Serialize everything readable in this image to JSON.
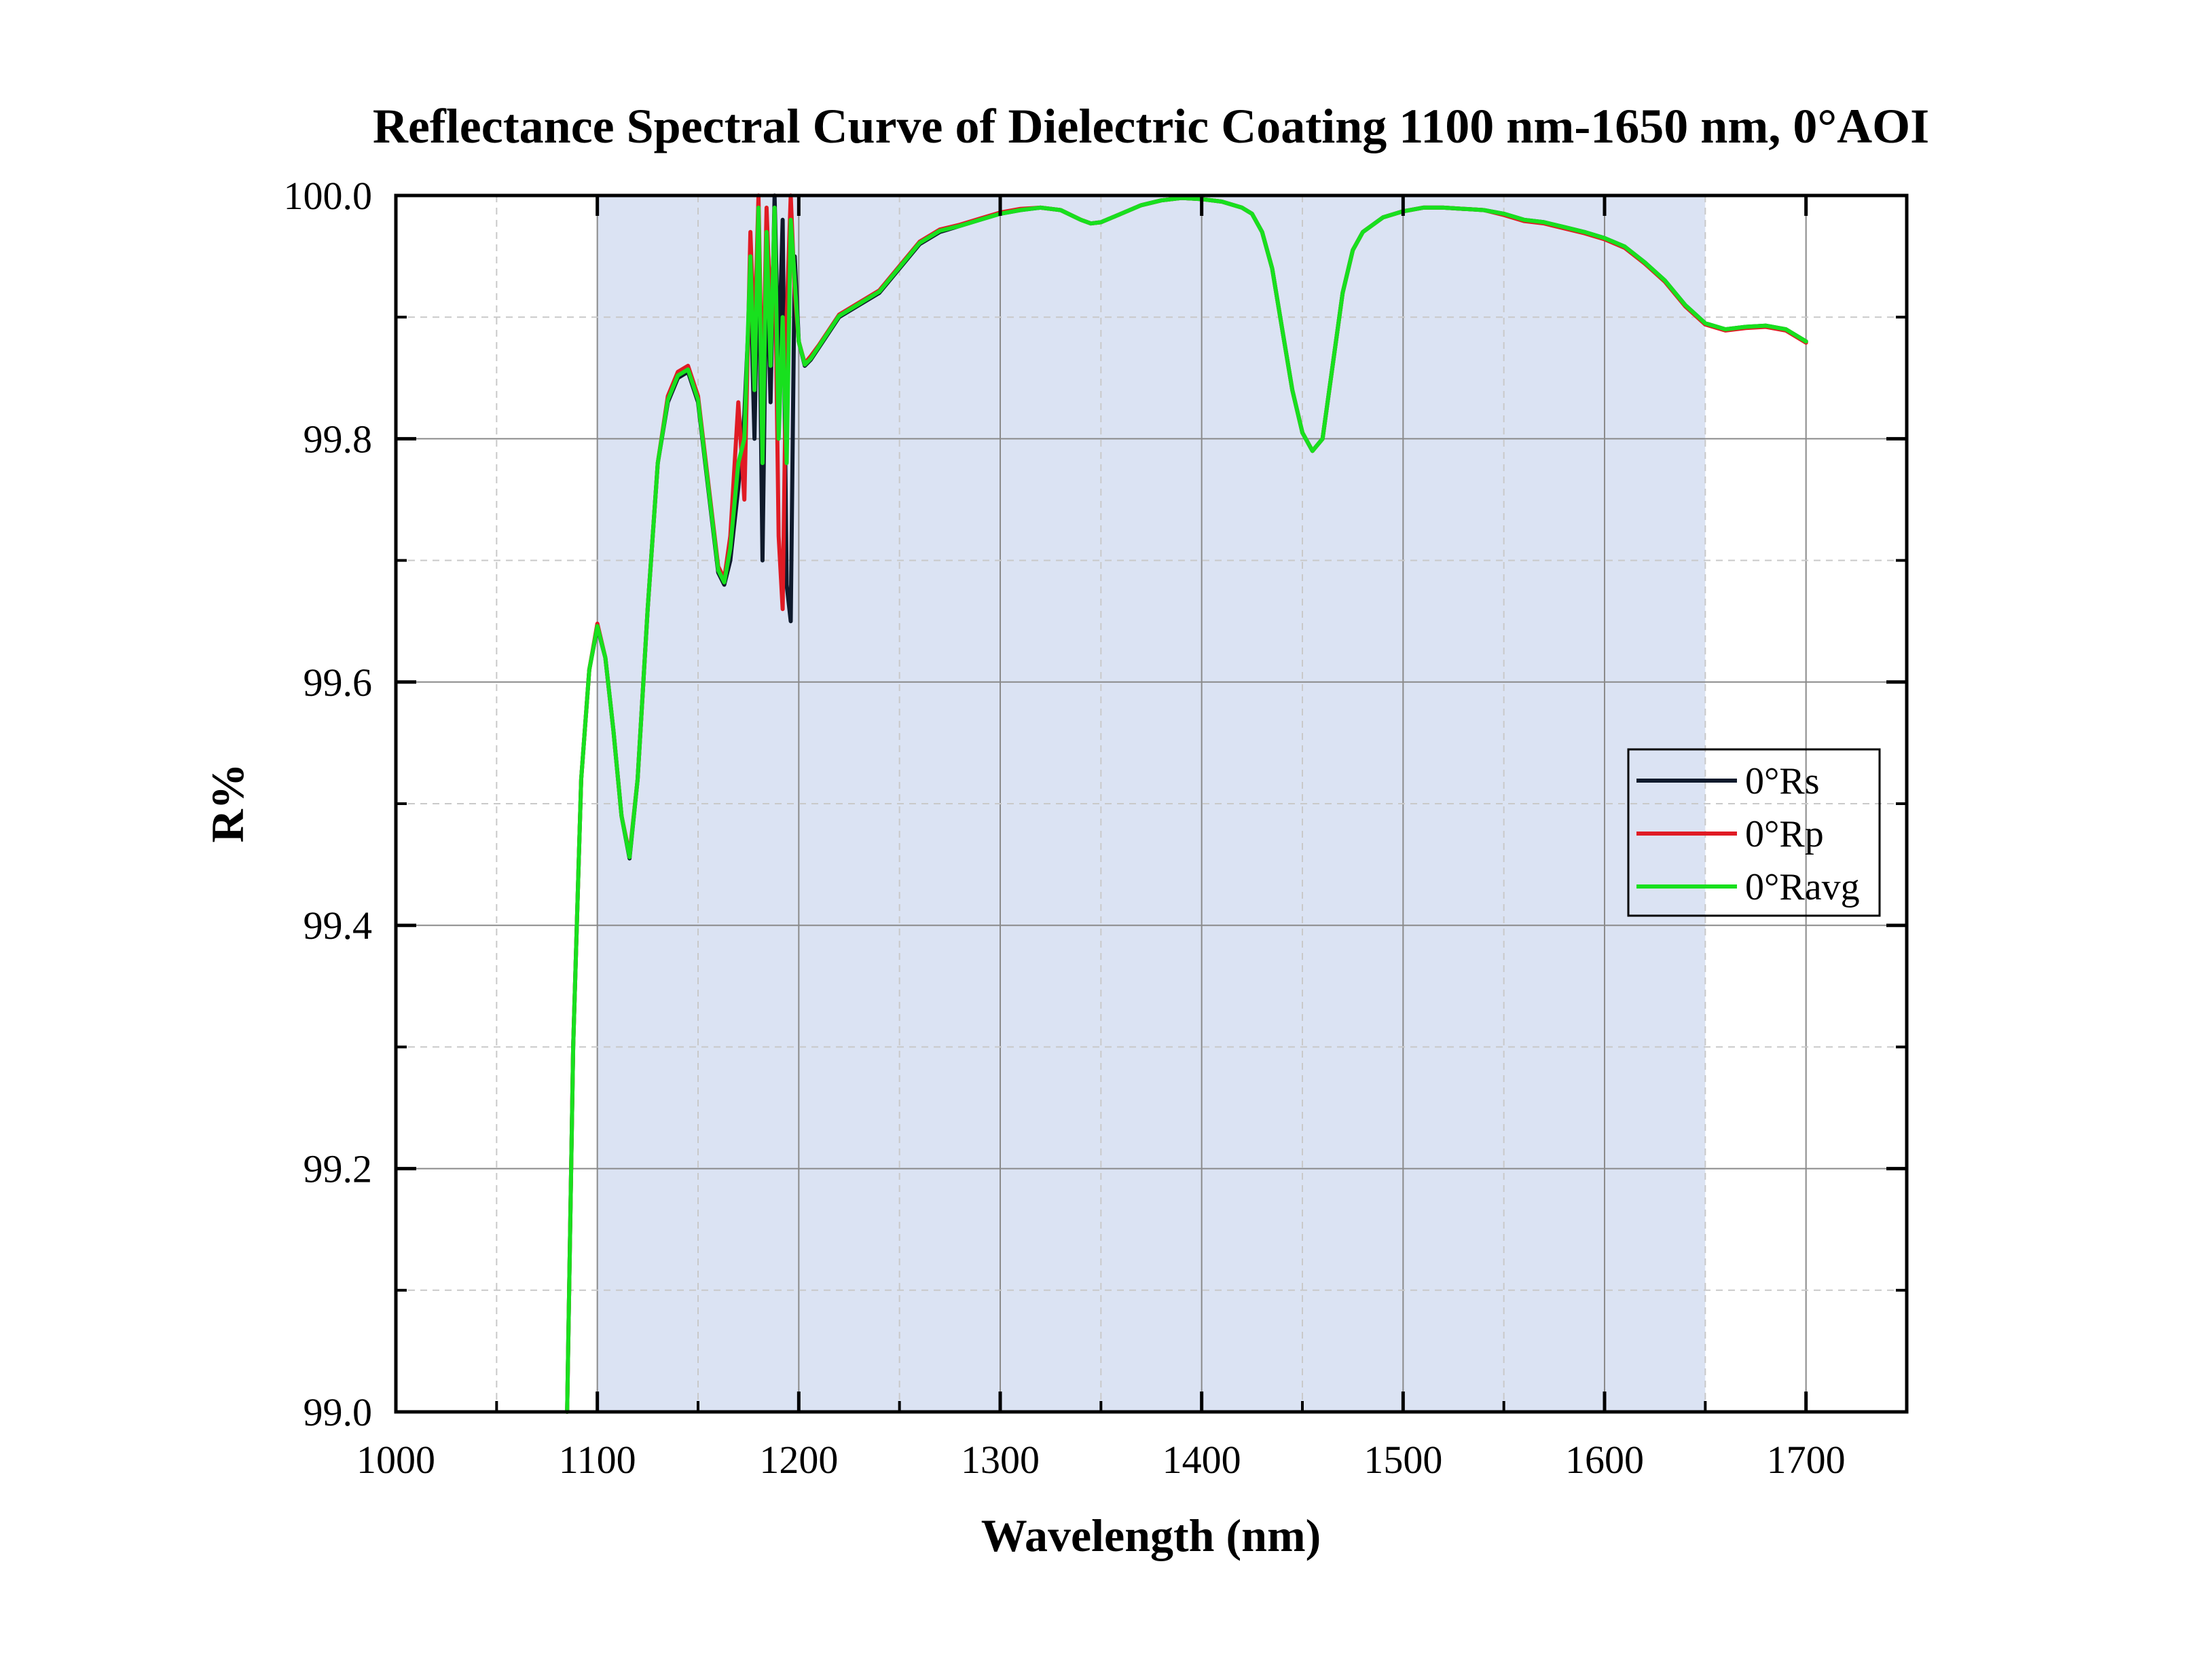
{
  "chart_data": {
    "type": "line",
    "title": "Reflectance Spectral Curve of Dielectric Coating 1100 nm-1650 nm,  0°AOI",
    "xlabel": "Wavelength (nm)",
    "ylabel": "R%",
    "xlim": [
      1000,
      1750
    ],
    "ylim": [
      99.0,
      100.0
    ],
    "x_ticks": [
      1000,
      1100,
      1200,
      1300,
      1400,
      1500,
      1600,
      1700
    ],
    "x_tick_labels": [
      "1000",
      "1100",
      "1200",
      "1300",
      "1400",
      "1500",
      "1600",
      "1700"
    ],
    "y_ticks": [
      99.0,
      99.2,
      99.4,
      99.6,
      99.8,
      100.0
    ],
    "y_tick_labels": [
      "99.0",
      "99.2",
      "99.4",
      "99.6",
      "99.8",
      "100.0"
    ],
    "grid": true,
    "highlight_band": {
      "x_start": 1100,
      "x_end": 1650,
      "color": "#dbe3f3"
    },
    "legend_position": "right",
    "series": [
      {
        "name": "0°Rs",
        "color": "#0f1a2c",
        "points": [
          [
            1085,
            99.0
          ],
          [
            1088,
            99.3
          ],
          [
            1092,
            99.52
          ],
          [
            1096,
            99.61
          ],
          [
            1100,
            99.645
          ],
          [
            1104,
            99.62
          ],
          [
            1108,
            99.56
          ],
          [
            1112,
            99.49
          ],
          [
            1116,
            99.455
          ],
          [
            1120,
            99.52
          ],
          [
            1125,
            99.66
          ],
          [
            1130,
            99.78
          ],
          [
            1135,
            99.83
          ],
          [
            1140,
            99.85
          ],
          [
            1145,
            99.855
          ],
          [
            1150,
            99.83
          ],
          [
            1155,
            99.76
          ],
          [
            1160,
            99.69
          ],
          [
            1163,
            99.68
          ],
          [
            1166,
            99.7
          ],
          [
            1170,
            99.76
          ],
          [
            1173,
            99.82
          ],
          [
            1176,
            99.93
          ],
          [
            1178,
            99.8
          ],
          [
            1180,
            99.98
          ],
          [
            1182,
            99.7
          ],
          [
            1184,
            99.95
          ],
          [
            1186,
            99.83
          ],
          [
            1188,
            100.0
          ],
          [
            1190,
            99.86
          ],
          [
            1192,
            99.98
          ],
          [
            1194,
            99.68
          ],
          [
            1196,
            99.65
          ],
          [
            1198,
            99.95
          ],
          [
            1200,
            99.88
          ],
          [
            1203,
            99.86
          ],
          [
            1206,
            99.865
          ],
          [
            1210,
            99.875
          ],
          [
            1220,
            99.9
          ],
          [
            1230,
            99.91
          ],
          [
            1240,
            99.92
          ],
          [
            1250,
            99.94
          ],
          [
            1260,
            99.96
          ],
          [
            1270,
            99.97
          ],
          [
            1280,
            99.975
          ],
          [
            1290,
            99.98
          ],
          [
            1300,
            99.985
          ],
          [
            1310,
            99.988
          ],
          [
            1320,
            99.99
          ],
          [
            1330,
            99.988
          ],
          [
            1340,
            99.98
          ],
          [
            1345,
            99.977
          ],
          [
            1350,
            99.978
          ],
          [
            1360,
            99.985
          ],
          [
            1370,
            99.992
          ],
          [
            1380,
            99.996
          ],
          [
            1390,
            99.998
          ],
          [
            1400,
            99.997
          ],
          [
            1410,
            99.995
          ],
          [
            1420,
            99.99
          ],
          [
            1425,
            99.985
          ],
          [
            1430,
            99.97
          ],
          [
            1435,
            99.94
          ],
          [
            1440,
            99.89
          ],
          [
            1445,
            99.84
          ],
          [
            1450,
            99.805
          ],
          [
            1455,
            99.79
          ],
          [
            1460,
            99.8
          ],
          [
            1465,
            99.86
          ],
          [
            1470,
            99.92
          ],
          [
            1475,
            99.955
          ],
          [
            1480,
            99.97
          ],
          [
            1490,
            99.982
          ],
          [
            1500,
            99.987
          ],
          [
            1510,
            99.99
          ],
          [
            1520,
            99.99
          ],
          [
            1530,
            99.989
          ],
          [
            1540,
            99.988
          ],
          [
            1550,
            99.985
          ],
          [
            1560,
            99.98
          ],
          [
            1570,
            99.978
          ],
          [
            1580,
            99.974
          ],
          [
            1590,
            99.97
          ],
          [
            1600,
            99.965
          ],
          [
            1610,
            99.958
          ],
          [
            1620,
            99.945
          ],
          [
            1630,
            99.93
          ],
          [
            1640,
            99.91
          ],
          [
            1650,
            99.895
          ],
          [
            1660,
            99.89
          ],
          [
            1670,
            99.892
          ],
          [
            1680,
            99.893
          ],
          [
            1690,
            99.89
          ],
          [
            1700,
            99.88
          ]
        ]
      },
      {
        "name": "0°Rp",
        "color": "#e01b24",
        "points": [
          [
            1085,
            99.0
          ],
          [
            1088,
            99.3
          ],
          [
            1092,
            99.52
          ],
          [
            1096,
            99.61
          ],
          [
            1100,
            99.648
          ],
          [
            1104,
            99.62
          ],
          [
            1108,
            99.56
          ],
          [
            1112,
            99.49
          ],
          [
            1116,
            99.458
          ],
          [
            1120,
            99.52
          ],
          [
            1125,
            99.66
          ],
          [
            1130,
            99.78
          ],
          [
            1135,
            99.835
          ],
          [
            1140,
            99.855
          ],
          [
            1145,
            99.86
          ],
          [
            1150,
            99.835
          ],
          [
            1155,
            99.765
          ],
          [
            1160,
            99.695
          ],
          [
            1163,
            99.685
          ],
          [
            1166,
            99.72
          ],
          [
            1170,
            99.83
          ],
          [
            1173,
            99.75
          ],
          [
            1176,
            99.97
          ],
          [
            1178,
            99.88
          ],
          [
            1180,
            100.0
          ],
          [
            1182,
            99.82
          ],
          [
            1184,
            99.99
          ],
          [
            1186,
            99.9
          ],
          [
            1188,
            99.97
          ],
          [
            1190,
            99.72
          ],
          [
            1192,
            99.66
          ],
          [
            1194,
            99.9
          ],
          [
            1196,
            100.0
          ],
          [
            1198,
            99.92
          ],
          [
            1200,
            99.88
          ],
          [
            1203,
            99.862
          ],
          [
            1206,
            99.868
          ],
          [
            1210,
            99.877
          ],
          [
            1220,
            99.902
          ],
          [
            1230,
            99.912
          ],
          [
            1240,
            99.922
          ],
          [
            1250,
            99.942
          ],
          [
            1260,
            99.962
          ],
          [
            1270,
            99.972
          ],
          [
            1280,
            99.976
          ],
          [
            1290,
            99.981
          ],
          [
            1300,
            99.986
          ],
          [
            1310,
            99.989
          ],
          [
            1320,
            99.99
          ],
          [
            1330,
            99.988
          ],
          [
            1340,
            99.98
          ],
          [
            1345,
            99.977
          ],
          [
            1350,
            99.978
          ],
          [
            1360,
            99.985
          ],
          [
            1370,
            99.992
          ],
          [
            1380,
            99.996
          ],
          [
            1390,
            99.998
          ],
          [
            1400,
            99.997
          ],
          [
            1410,
            99.995
          ],
          [
            1420,
            99.99
          ],
          [
            1425,
            99.985
          ],
          [
            1430,
            99.97
          ],
          [
            1435,
            99.94
          ],
          [
            1440,
            99.89
          ],
          [
            1445,
            99.84
          ],
          [
            1450,
            99.805
          ],
          [
            1455,
            99.79
          ],
          [
            1460,
            99.8
          ],
          [
            1465,
            99.86
          ],
          [
            1470,
            99.92
          ],
          [
            1475,
            99.955
          ],
          [
            1480,
            99.97
          ],
          [
            1490,
            99.982
          ],
          [
            1500,
            99.987
          ],
          [
            1510,
            99.99
          ],
          [
            1520,
            99.99
          ],
          [
            1530,
            99.989
          ],
          [
            1540,
            99.988
          ],
          [
            1550,
            99.984
          ],
          [
            1560,
            99.979
          ],
          [
            1570,
            99.977
          ],
          [
            1580,
            99.973
          ],
          [
            1590,
            99.969
          ],
          [
            1600,
            99.964
          ],
          [
            1610,
            99.957
          ],
          [
            1620,
            99.944
          ],
          [
            1630,
            99.929
          ],
          [
            1640,
            99.909
          ],
          [
            1650,
            99.894
          ],
          [
            1660,
            99.889
          ],
          [
            1670,
            99.891
          ],
          [
            1680,
            99.892
          ],
          [
            1690,
            99.889
          ],
          [
            1700,
            99.879
          ]
        ]
      },
      {
        "name": "0°Ravg",
        "color": "#18e01e",
        "points": [
          [
            1085,
            99.0
          ],
          [
            1088,
            99.3
          ],
          [
            1092,
            99.52
          ],
          [
            1096,
            99.61
          ],
          [
            1100,
            99.646
          ],
          [
            1104,
            99.62
          ],
          [
            1108,
            99.56
          ],
          [
            1112,
            99.49
          ],
          [
            1116,
            99.456
          ],
          [
            1120,
            99.52
          ],
          [
            1125,
            99.66
          ],
          [
            1130,
            99.78
          ],
          [
            1135,
            99.832
          ],
          [
            1140,
            99.852
          ],
          [
            1145,
            99.857
          ],
          [
            1150,
            99.832
          ],
          [
            1155,
            99.762
          ],
          [
            1160,
            99.692
          ],
          [
            1163,
            99.682
          ],
          [
            1166,
            99.71
          ],
          [
            1170,
            99.78
          ],
          [
            1173,
            99.8
          ],
          [
            1176,
            99.95
          ],
          [
            1178,
            99.84
          ],
          [
            1180,
            99.99
          ],
          [
            1182,
            99.78
          ],
          [
            1184,
            99.97
          ],
          [
            1186,
            99.86
          ],
          [
            1188,
            99.99
          ],
          [
            1190,
            99.8
          ],
          [
            1192,
            99.9
          ],
          [
            1194,
            99.78
          ],
          [
            1196,
            99.98
          ],
          [
            1198,
            99.93
          ],
          [
            1200,
            99.88
          ],
          [
            1203,
            99.861
          ],
          [
            1206,
            99.866
          ],
          [
            1210,
            99.876
          ],
          [
            1220,
            99.901
          ],
          [
            1230,
            99.911
          ],
          [
            1240,
            99.921
          ],
          [
            1250,
            99.941
          ],
          [
            1260,
            99.961
          ],
          [
            1270,
            99.971
          ],
          [
            1280,
            99.975
          ],
          [
            1290,
            99.98
          ],
          [
            1300,
            99.985
          ],
          [
            1310,
            99.988
          ],
          [
            1320,
            99.99
          ],
          [
            1330,
            99.988
          ],
          [
            1340,
            99.98
          ],
          [
            1345,
            99.977
          ],
          [
            1350,
            99.978
          ],
          [
            1360,
            99.985
          ],
          [
            1370,
            99.992
          ],
          [
            1380,
            99.996
          ],
          [
            1390,
            99.998
          ],
          [
            1400,
            99.997
          ],
          [
            1410,
            99.995
          ],
          [
            1420,
            99.99
          ],
          [
            1425,
            99.985
          ],
          [
            1430,
            99.97
          ],
          [
            1435,
            99.94
          ],
          [
            1440,
            99.89
          ],
          [
            1445,
            99.84
          ],
          [
            1450,
            99.805
          ],
          [
            1455,
            99.79
          ],
          [
            1460,
            99.8
          ],
          [
            1465,
            99.86
          ],
          [
            1470,
            99.92
          ],
          [
            1475,
            99.955
          ],
          [
            1480,
            99.97
          ],
          [
            1490,
            99.982
          ],
          [
            1500,
            99.987
          ],
          [
            1510,
            99.99
          ],
          [
            1520,
            99.99
          ],
          [
            1530,
            99.989
          ],
          [
            1540,
            99.988
          ],
          [
            1550,
            99.985
          ],
          [
            1560,
            99.98
          ],
          [
            1570,
            99.978
          ],
          [
            1580,
            99.974
          ],
          [
            1590,
            99.97
          ],
          [
            1600,
            99.965
          ],
          [
            1610,
            99.958
          ],
          [
            1620,
            99.945
          ],
          [
            1630,
            99.93
          ],
          [
            1640,
            99.91
          ],
          [
            1650,
            99.895
          ],
          [
            1660,
            99.89
          ],
          [
            1670,
            99.892
          ],
          [
            1680,
            99.893
          ],
          [
            1690,
            99.89
          ],
          [
            1700,
            99.88
          ]
        ]
      }
    ]
  }
}
